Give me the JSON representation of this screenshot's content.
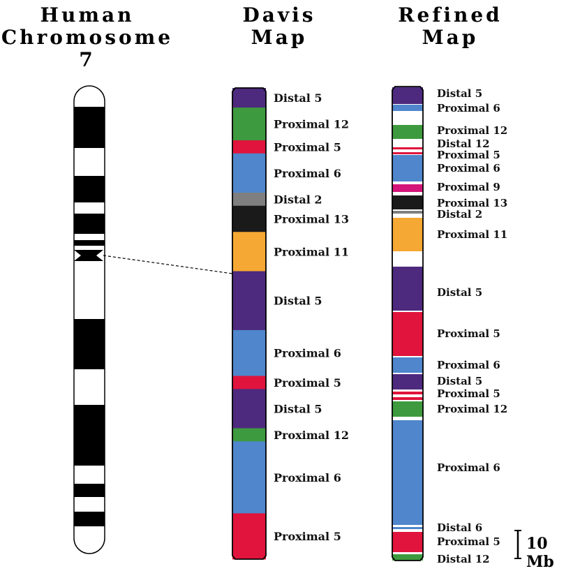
{
  "titles": {
    "human": [
      "Human",
      "Chromosome 7"
    ],
    "davis": [
      "Davis",
      "Map"
    ],
    "refined": [
      "Refined",
      "Map"
    ]
  },
  "colors": {
    "purple": "#4d2a7e",
    "green": "#3e9a3e",
    "red": "#e0143c",
    "blue": "#4f86cc",
    "gray": "#7f7f7f",
    "black": "#1a1a1a",
    "orange": "#f5a833",
    "magenta": "#d4157a",
    "white": "#ffffff"
  },
  "davis_segments": [
    {
      "label": "Distal 5",
      "color": "purple",
      "mb": 3
    },
    {
      "label": "Proximal 12",
      "color": "green",
      "mb": 5
    },
    {
      "label": "Proximal 5",
      "color": "red",
      "mb": 2
    },
    {
      "label": "Proximal 6",
      "color": "blue",
      "mb": 6
    },
    {
      "label": "Distal 2",
      "color": "gray",
      "mb": 2
    },
    {
      "label": "Proximal 13",
      "color": "black",
      "mb": 4
    },
    {
      "label": "Proximal 11",
      "color": "orange",
      "mb": 6
    },
    {
      "label": "Distal 5",
      "color": "purple",
      "mb": 9
    },
    {
      "label": "Proximal 6",
      "color": "blue",
      "mb": 7
    },
    {
      "label": "Proximal 5",
      "color": "red",
      "mb": 2
    },
    {
      "label": "Distal 5",
      "color": "purple",
      "mb": 6
    },
    {
      "label": "Proximal 12",
      "color": "green",
      "mb": 2
    },
    {
      "label": "Proximal 6",
      "color": "blue",
      "mb": 11
    },
    {
      "label": "Proximal 5",
      "color": "red",
      "mb": 7
    }
  ],
  "refined_labels": [
    "Distal 5",
    "Proximal 6",
    "Proximal 12",
    "Distal 12",
    "Proximal 5",
    "Proximal 6",
    "Proximal 9",
    "Proximal 13",
    "Distal 2",
    "Proximal 11",
    "Distal 5",
    "Proximal 5",
    "Proximal 6",
    "Distal 5",
    "Proximal 5",
    "Proximal 12",
    "Proximal 6",
    "Distal 6",
    "Proximal 5",
    "Distal 12"
  ],
  "scale_bar": {
    "label": "10 Mb"
  }
}
